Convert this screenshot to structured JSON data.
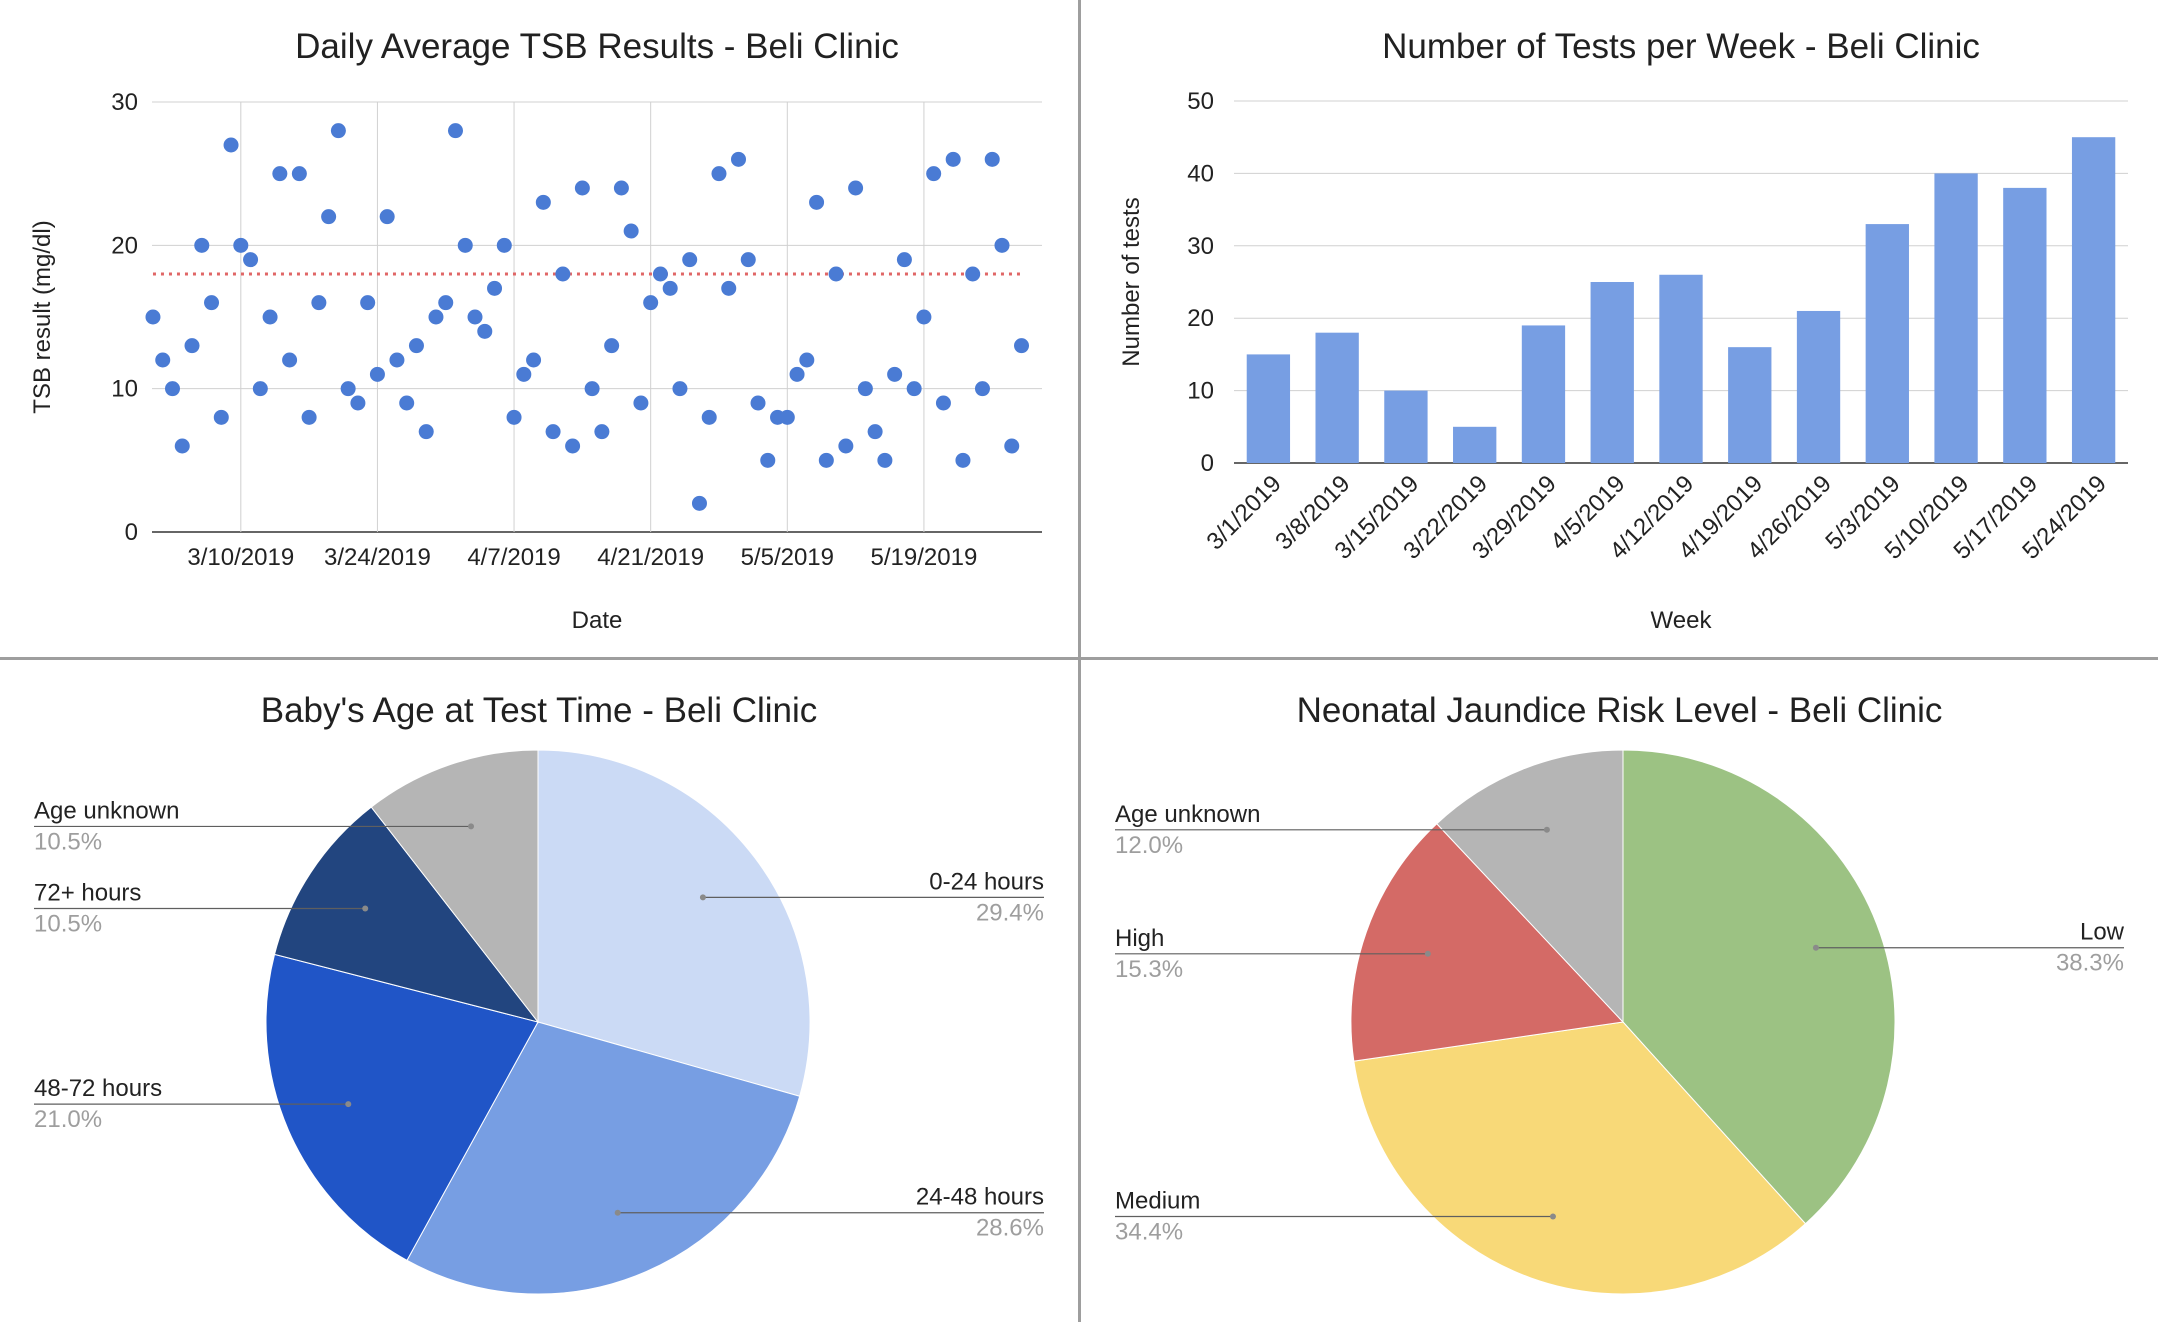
{
  "chart_data": [
    {
      "type": "scatter",
      "title": "Daily Average TSB Results - Beli Clinic",
      "xlabel": "Date",
      "ylabel": "TSB result (mg/dl)",
      "ylim": [
        0,
        30
      ],
      "yticks": [
        "0",
        "10",
        "20",
        "30"
      ],
      "x_tick_labels": [
        "3/10/2019",
        "3/24/2019",
        "4/7/2019",
        "4/21/2019",
        "5/5/2019",
        "5/19/2019"
      ],
      "x_tick_dates": [
        "2019-03-10",
        "2019-03-24",
        "2019-04-07",
        "2019-04-21",
        "2019-05-05",
        "2019-05-19"
      ],
      "xlim": [
        "2019-03-01",
        "2019-05-31"
      ],
      "reference_line": {
        "y": 18,
        "style": "dotted",
        "color": "#e06666"
      },
      "grid": true,
      "color": "#4a7bd4",
      "points": [
        [
          "2019-03-01",
          15
        ],
        [
          "2019-03-02",
          12
        ],
        [
          "2019-03-03",
          10
        ],
        [
          "2019-03-04",
          6
        ],
        [
          "2019-03-05",
          13
        ],
        [
          "2019-03-06",
          20
        ],
        [
          "2019-03-07",
          16
        ],
        [
          "2019-03-08",
          8
        ],
        [
          "2019-03-09",
          27
        ],
        [
          "2019-03-10",
          20
        ],
        [
          "2019-03-11",
          19
        ],
        [
          "2019-03-12",
          10
        ],
        [
          "2019-03-13",
          15
        ],
        [
          "2019-03-14",
          25
        ],
        [
          "2019-03-15",
          12
        ],
        [
          "2019-03-16",
          25
        ],
        [
          "2019-03-17",
          8
        ],
        [
          "2019-03-18",
          16
        ],
        [
          "2019-03-19",
          22
        ],
        [
          "2019-03-20",
          28
        ],
        [
          "2019-03-21",
          10
        ],
        [
          "2019-03-22",
          9
        ],
        [
          "2019-03-23",
          16
        ],
        [
          "2019-03-24",
          11
        ],
        [
          "2019-03-25",
          22
        ],
        [
          "2019-03-26",
          12
        ],
        [
          "2019-03-27",
          9
        ],
        [
          "2019-03-28",
          13
        ],
        [
          "2019-03-29",
          7
        ],
        [
          "2019-03-30",
          15
        ],
        [
          "2019-03-31",
          16
        ],
        [
          "2019-04-01",
          28
        ],
        [
          "2019-04-02",
          20
        ],
        [
          "2019-04-03",
          15
        ],
        [
          "2019-04-04",
          14
        ],
        [
          "2019-04-05",
          17
        ],
        [
          "2019-04-06",
          20
        ],
        [
          "2019-04-07",
          8
        ],
        [
          "2019-04-08",
          11
        ],
        [
          "2019-04-09",
          12
        ],
        [
          "2019-04-10",
          23
        ],
        [
          "2019-04-11",
          7
        ],
        [
          "2019-04-12",
          18
        ],
        [
          "2019-04-13",
          6
        ],
        [
          "2019-04-14",
          24
        ],
        [
          "2019-04-15",
          10
        ],
        [
          "2019-04-16",
          7
        ],
        [
          "2019-04-17",
          13
        ],
        [
          "2019-04-18",
          24
        ],
        [
          "2019-04-19",
          21
        ],
        [
          "2019-04-20",
          9
        ],
        [
          "2019-04-21",
          16
        ],
        [
          "2019-04-22",
          18
        ],
        [
          "2019-04-23",
          17
        ],
        [
          "2019-04-24",
          10
        ],
        [
          "2019-04-25",
          19
        ],
        [
          "2019-04-26",
          2
        ],
        [
          "2019-04-27",
          8
        ],
        [
          "2019-04-28",
          25
        ],
        [
          "2019-04-29",
          17
        ],
        [
          "2019-04-30",
          26
        ],
        [
          "2019-05-01",
          19
        ],
        [
          "2019-05-02",
          9
        ],
        [
          "2019-05-03",
          5
        ],
        [
          "2019-05-04",
          8
        ],
        [
          "2019-05-05",
          8
        ],
        [
          "2019-05-06",
          11
        ],
        [
          "2019-05-07",
          12
        ],
        [
          "2019-05-08",
          23
        ],
        [
          "2019-05-09",
          5
        ],
        [
          "2019-05-10",
          18
        ],
        [
          "2019-05-11",
          6
        ],
        [
          "2019-05-12",
          24
        ],
        [
          "2019-05-13",
          10
        ],
        [
          "2019-05-14",
          7
        ],
        [
          "2019-05-15",
          5
        ],
        [
          "2019-05-16",
          11
        ],
        [
          "2019-05-17",
          19
        ],
        [
          "2019-05-18",
          10
        ],
        [
          "2019-05-19",
          15
        ],
        [
          "2019-05-20",
          25
        ],
        [
          "2019-05-21",
          9
        ],
        [
          "2019-05-22",
          26
        ],
        [
          "2019-05-23",
          5
        ],
        [
          "2019-05-24",
          18
        ],
        [
          "2019-05-25",
          10
        ],
        [
          "2019-05-26",
          26
        ],
        [
          "2019-05-27",
          20
        ],
        [
          "2019-05-28",
          6
        ],
        [
          "2019-05-29",
          13
        ]
      ]
    },
    {
      "type": "bar",
      "title": "Number of Tests per Week - Beli Clinic",
      "xlabel": "Week",
      "ylabel": "Number of tests",
      "ylim": [
        0,
        50
      ],
      "yticks": [
        "0",
        "10",
        "20",
        "30",
        "40",
        "50"
      ],
      "grid": true,
      "color": "#779ee3",
      "categories": [
        "3/1/2019",
        "3/8/2019",
        "3/15/2019",
        "3/22/2019",
        "3/29/2019",
        "4/5/2019",
        "4/12/2019",
        "4/19/2019",
        "4/26/2019",
        "5/3/2019",
        "5/10/2019",
        "5/17/2019",
        "5/24/2019"
      ],
      "values": [
        15,
        18,
        10,
        5,
        19,
        25,
        26,
        16,
        21,
        33,
        40,
        38,
        45
      ]
    },
    {
      "type": "pie",
      "title": "Baby's Age at Test Time - Beli Clinic",
      "slices": [
        {
          "label": "0-24 hours",
          "pct": "29.4%",
          "value": 29.4,
          "color": "#cbdaf5"
        },
        {
          "label": "24-48 hours",
          "pct": "28.6%",
          "value": 28.6,
          "color": "#779ee3"
        },
        {
          "label": "48-72 hours",
          "pct": "21.0%",
          "value": 21.0,
          "color": "#2055c7"
        },
        {
          "label": "72+ hours",
          "pct": "10.5%",
          "value": 10.5,
          "color": "#22457f"
        },
        {
          "label": "Age unknown",
          "pct": "10.5%",
          "value": 10.5,
          "color": "#b5b5b5"
        }
      ]
    },
    {
      "type": "pie",
      "title": "Neonatal Jaundice Risk Level - Beli Clinic",
      "slices": [
        {
          "label": "Low",
          "pct": "38.3%",
          "value": 38.3,
          "color": "#9cc283"
        },
        {
          "label": "Medium",
          "pct": "34.4%",
          "value": 34.4,
          "color": "#f8d978"
        },
        {
          "label": "High",
          "pct": "15.3%",
          "value": 15.3,
          "color": "#d46a66"
        },
        {
          "label": "Age unknown",
          "pct": "12.0%",
          "value": 12.0,
          "color": "#b5b5b5"
        }
      ]
    }
  ]
}
